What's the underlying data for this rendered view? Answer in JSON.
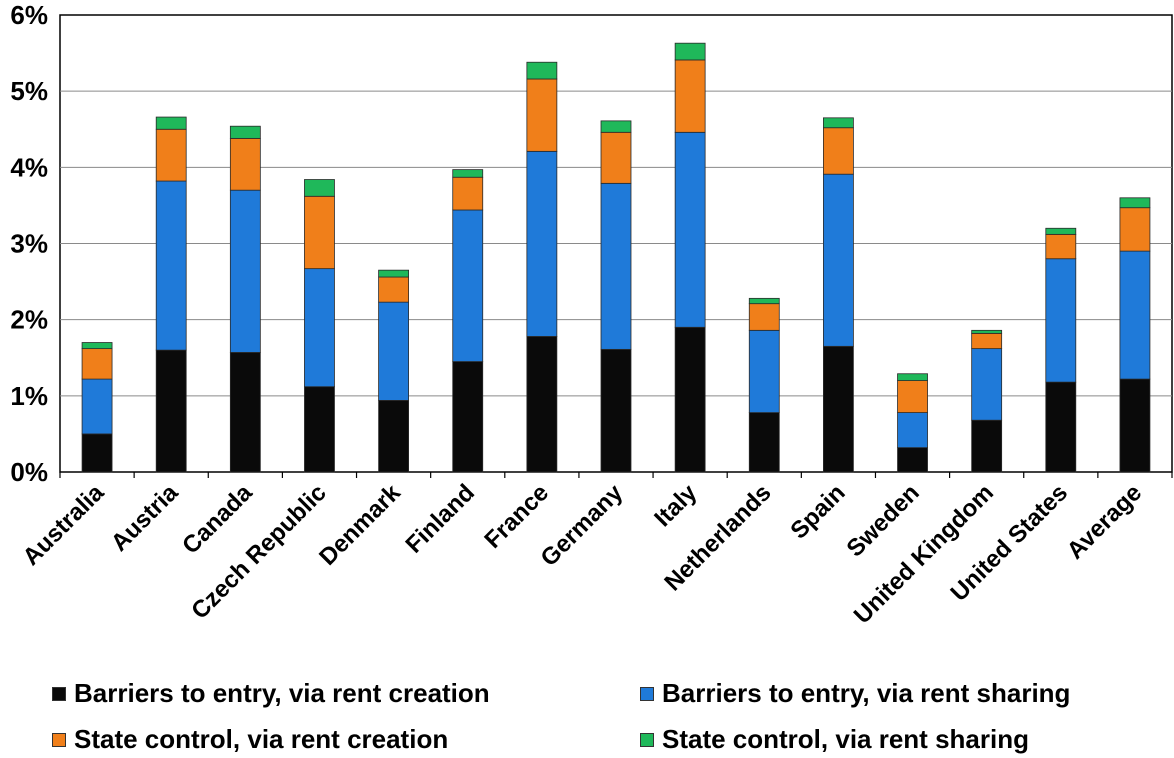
{
  "chart_data": {
    "type": "bar",
    "stacked": true,
    "categories": [
      "Australia",
      "Austria",
      "Canada",
      "Czech Republic",
      "Denmark",
      "Finland",
      "France",
      "Germany",
      "Italy",
      "Netherlands",
      "Spain",
      "Sweden",
      "United Kingdom",
      "United States",
      "Average"
    ],
    "series": [
      {
        "name": "Barriers to entry, via rent creation",
        "color": "#0a0a0a",
        "values": [
          0.5,
          1.6,
          1.57,
          1.12,
          0.94,
          1.45,
          1.78,
          1.61,
          1.9,
          0.78,
          1.65,
          0.32,
          0.68,
          1.18,
          1.22
        ]
      },
      {
        "name": "Barriers to entry, via rent sharing",
        "color": "#1f7ad9",
        "values": [
          0.72,
          2.22,
          2.13,
          1.55,
          1.29,
          1.99,
          2.43,
          2.18,
          2.56,
          1.08,
          2.26,
          0.46,
          0.94,
          1.62,
          1.68
        ]
      },
      {
        "name": "State control, via rent creation",
        "color": "#f07f1a",
        "values": [
          0.4,
          0.68,
          0.68,
          0.95,
          0.33,
          0.43,
          0.95,
          0.67,
          0.95,
          0.35,
          0.61,
          0.42,
          0.2,
          0.32,
          0.57
        ]
      },
      {
        "name": "State control, via rent sharing",
        "color": "#1fb85a",
        "values": [
          0.08,
          0.16,
          0.16,
          0.22,
          0.09,
          0.1,
          0.22,
          0.15,
          0.22,
          0.07,
          0.13,
          0.09,
          0.04,
          0.08,
          0.13
        ]
      }
    ],
    "yticks": [
      "0%",
      "1%",
      "2%",
      "3%",
      "4%",
      "5%",
      "6%"
    ],
    "ylim": [
      0,
      6
    ],
    "grid": true,
    "legend_position": "bottom"
  }
}
